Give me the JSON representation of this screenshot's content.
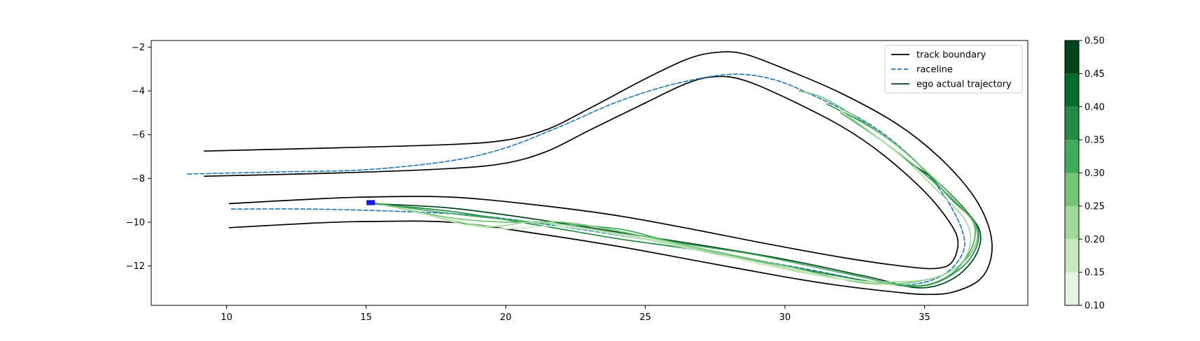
{
  "chart_data": {
    "type": "line",
    "title": "",
    "xlabel": "",
    "ylabel": "",
    "xlim": [
      7.3,
      38.7
    ],
    "ylim": [
      -13.8,
      -1.7
    ],
    "xticks": [
      10,
      15,
      20,
      25,
      30,
      35
    ],
    "yticks": [
      -2,
      -4,
      -6,
      -8,
      -10,
      -12
    ],
    "grid": false,
    "legend": {
      "placement": "top-right",
      "entries": [
        {
          "label": "track boundary",
          "color": "#000000",
          "style": "solid"
        },
        {
          "label": "raceline",
          "color": "#1f77b4",
          "style": "dashed"
        },
        {
          "label": "ego actual trajectory",
          "color": "#00441b",
          "style": "solid"
        }
      ]
    },
    "colorbar": {
      "cmap": "Greens",
      "min": 0.1,
      "max": 0.5,
      "levels": [
        0.1,
        0.15,
        0.2,
        0.25,
        0.3,
        0.35,
        0.4,
        0.45,
        0.5
      ],
      "colors": [
        "#f7fcf5",
        "#e5f5e0",
        "#c7e9c0",
        "#a1d99b",
        "#74c476",
        "#41ab5d",
        "#238b45",
        "#006d2c",
        "#00441b"
      ],
      "tick_labels": [
        "0.10",
        "0.15",
        "0.20",
        "0.25",
        "0.30",
        "0.35",
        "0.40",
        "0.45",
        "0.50"
      ]
    },
    "series": [
      {
        "name": "track boundary",
        "color": "#000000",
        "style": "solid",
        "points": [
          [
            9.2,
            -6.75
          ],
          [
            14,
            -6.6
          ],
          [
            18,
            -6.45
          ],
          [
            20,
            -6.25
          ],
          [
            21.5,
            -5.75
          ],
          [
            23,
            -4.8
          ],
          [
            25,
            -3.45
          ],
          [
            26.5,
            -2.55
          ],
          [
            27.5,
            -2.25
          ],
          [
            28.5,
            -2.3
          ],
          [
            30,
            -3.0
          ],
          [
            32,
            -4.1
          ],
          [
            34,
            -5.5
          ],
          [
            35.5,
            -7.0
          ],
          [
            36.7,
            -8.7
          ],
          [
            37.3,
            -10.2
          ],
          [
            37.4,
            -11.5
          ],
          [
            37.0,
            -12.6
          ],
          [
            36,
            -13.2
          ],
          [
            35,
            -13.3
          ],
          [
            34,
            -13.2
          ],
          [
            32,
            -12.9
          ],
          [
            30,
            -12.5
          ],
          [
            27,
            -11.8
          ],
          [
            24,
            -11.1
          ],
          [
            21,
            -10.5
          ],
          [
            18,
            -10.0
          ],
          [
            15,
            -9.97
          ],
          [
            13,
            -10.05
          ],
          [
            10.1,
            -10.25
          ]
        ]
      },
      {
        "name": "",
        "color": "#000000",
        "style": "solid",
        "points": [
          [
            9.2,
            -7.9
          ],
          [
            14,
            -7.75
          ],
          [
            18,
            -7.55
          ],
          [
            20,
            -7.3
          ],
          [
            21.5,
            -6.75
          ],
          [
            23,
            -5.8
          ],
          [
            25,
            -4.55
          ],
          [
            26.5,
            -3.65
          ],
          [
            27.5,
            -3.35
          ],
          [
            28.5,
            -3.5
          ],
          [
            30,
            -4.3
          ],
          [
            32,
            -5.6
          ],
          [
            33.5,
            -6.9
          ],
          [
            35,
            -8.6
          ],
          [
            35.9,
            -10.0
          ],
          [
            36.2,
            -10.9
          ],
          [
            36.0,
            -11.8
          ],
          [
            35.5,
            -12.1
          ],
          [
            34.5,
            -12.05
          ],
          [
            32,
            -11.6
          ],
          [
            29,
            -10.9
          ],
          [
            27,
            -10.4
          ],
          [
            24,
            -9.7
          ],
          [
            21,
            -9.2
          ],
          [
            18,
            -8.85
          ],
          [
            15,
            -8.85
          ],
          [
            13,
            -8.95
          ],
          [
            10.1,
            -9.15
          ]
        ]
      },
      {
        "name": "raceline",
        "color": "#1f77b4",
        "style": "dashed",
        "points": [
          [
            8.6,
            -7.8
          ],
          [
            12,
            -7.7
          ],
          [
            15,
            -7.6
          ],
          [
            18,
            -7.2
          ],
          [
            20,
            -6.6
          ],
          [
            22,
            -5.6
          ],
          [
            24,
            -4.5
          ],
          [
            26,
            -3.7
          ],
          [
            28,
            -3.25
          ],
          [
            29.5,
            -3.45
          ],
          [
            31,
            -4.2
          ],
          [
            33,
            -5.5
          ],
          [
            34.5,
            -7.0
          ],
          [
            35.6,
            -8.6
          ],
          [
            36.3,
            -10.2
          ],
          [
            36.4,
            -11.3
          ],
          [
            35.8,
            -12.3
          ],
          [
            34.8,
            -12.8
          ],
          [
            33.5,
            -12.8
          ],
          [
            31,
            -12.2
          ],
          [
            28,
            -11.5
          ],
          [
            25,
            -10.8
          ],
          [
            22,
            -10.2
          ],
          [
            19,
            -9.7
          ],
          [
            16,
            -9.5
          ],
          [
            13,
            -9.4
          ],
          [
            10.1,
            -9.4
          ]
        ]
      },
      {
        "name": "ego actual trajectory",
        "color": "#00441b",
        "style": "solid",
        "points": [
          [
            15.2,
            -9.15
          ],
          [
            18,
            -9.35
          ],
          [
            21,
            -9.85
          ],
          [
            24,
            -10.45
          ],
          [
            27,
            -11.05
          ],
          [
            30,
            -11.7
          ],
          [
            33,
            -12.5
          ],
          [
            34.8,
            -13.0
          ],
          [
            36,
            -12.6
          ],
          [
            36.8,
            -11.6
          ],
          [
            37.0,
            -10.5
          ],
          [
            36.5,
            -9.5
          ],
          [
            35.5,
            -8.2
          ],
          [
            34.5,
            -7.3
          ]
        ]
      },
      {
        "name": "",
        "color": "#238b45",
        "style": "solid",
        "points": [
          [
            15.2,
            -9.15
          ],
          [
            18,
            -9.5
          ],
          [
            21,
            -10.1
          ],
          [
            24,
            -10.75
          ],
          [
            27,
            -11.3
          ],
          [
            30,
            -12.0
          ],
          [
            33,
            -12.7
          ],
          [
            35,
            -12.9
          ],
          [
            36.3,
            -12.1
          ],
          [
            36.9,
            -11.0
          ],
          [
            36.8,
            -10.0
          ],
          [
            36.0,
            -9.0
          ],
          [
            34.5,
            -7.0
          ],
          [
            33,
            -5.6
          ],
          [
            31.5,
            -4.6
          ]
        ]
      },
      {
        "name": "",
        "color": "#41ab5d",
        "style": "solid",
        "points": [
          [
            15.4,
            -9.15
          ],
          [
            18,
            -9.6
          ],
          [
            21,
            -10.0
          ],
          [
            24,
            -10.3
          ],
          [
            26,
            -10.9
          ],
          [
            29,
            -11.5
          ],
          [
            32,
            -12.3
          ],
          [
            34.5,
            -12.9
          ],
          [
            35.8,
            -12.5
          ],
          [
            36.6,
            -11.4
          ],
          [
            36.8,
            -10.2
          ],
          [
            36.2,
            -9.2
          ],
          [
            35,
            -7.8
          ],
          [
            33.5,
            -6.3
          ],
          [
            32,
            -5.0
          ]
        ]
      },
      {
        "name": "",
        "color": "#74c476",
        "style": "solid",
        "points": [
          [
            15.6,
            -9.2
          ],
          [
            18,
            -9.8
          ],
          [
            20,
            -10.0
          ],
          [
            22,
            -10.0
          ],
          [
            24,
            -10.4
          ],
          [
            27,
            -11.2
          ],
          [
            30,
            -12.0
          ],
          [
            33,
            -12.8
          ],
          [
            35.2,
            -12.6
          ],
          [
            36.4,
            -11.8
          ],
          [
            36.9,
            -10.6
          ],
          [
            36.4,
            -9.4
          ],
          [
            35,
            -7.6
          ],
          [
            33.5,
            -6.0
          ],
          [
            31.5,
            -4.4
          ],
          [
            30.5,
            -4.0
          ]
        ]
      },
      {
        "name": "",
        "color": "#a1d99b",
        "style": "solid",
        "points": [
          [
            16,
            -9.3
          ],
          [
            18,
            -9.9
          ],
          [
            19.5,
            -10.2
          ],
          [
            21,
            -10.0
          ],
          [
            23,
            -10.3
          ],
          [
            26,
            -11.0
          ],
          [
            29,
            -11.8
          ],
          [
            32,
            -12.6
          ],
          [
            34.6,
            -12.7
          ],
          [
            36,
            -12.2
          ],
          [
            36.6,
            -11.2
          ],
          [
            36.5,
            -10.0
          ],
          [
            35.5,
            -8.6
          ],
          [
            34,
            -6.8
          ],
          [
            32,
            -4.9
          ]
        ]
      },
      {
        "name": "",
        "color": "#c7e9c0",
        "style": "solid",
        "points": [
          [
            17,
            -9.6
          ],
          [
            18.5,
            -10.1
          ],
          [
            20,
            -10.3
          ],
          [
            22,
            -10.2
          ],
          [
            25,
            -10.8
          ],
          [
            28,
            -11.6
          ],
          [
            31,
            -12.4
          ],
          [
            34,
            -12.9
          ]
        ]
      }
    ]
  }
}
